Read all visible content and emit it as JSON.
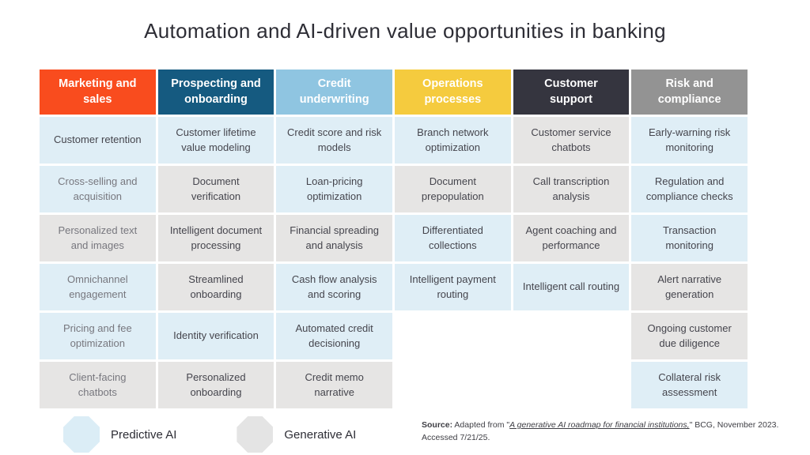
{
  "title": "Automation and AI-driven value opportunities in banking",
  "colors": {
    "predictive_cell": "#dfeef6",
    "generative_cell": "#e6e5e4"
  },
  "table": {
    "columns": [
      {
        "header": "Marketing and sales",
        "header_color": "#f94c1e",
        "cells": [
          {
            "text": "Customer retention",
            "type": "predictive"
          },
          {
            "text": "Cross-selling and acquisition",
            "type": "predictive",
            "muted": true
          },
          {
            "text": "Personalized text and images",
            "type": "generative",
            "muted": true
          },
          {
            "text": "Omnichannel engagement",
            "type": "predictive",
            "muted": true
          },
          {
            "text": "Pricing and fee optimization",
            "type": "predictive",
            "muted": true
          },
          {
            "text": "Client-facing chatbots",
            "type": "generative",
            "muted": true
          }
        ]
      },
      {
        "header": "Prospecting and onboarding",
        "header_color": "#155a80",
        "cells": [
          {
            "text": "Customer lifetime value modeling",
            "type": "predictive"
          },
          {
            "text": "Document verification",
            "type": "generative"
          },
          {
            "text": "Intelligent document processing",
            "type": "generative"
          },
          {
            "text": "Streamlined onboarding",
            "type": "generative"
          },
          {
            "text": "Identity verification",
            "type": "predictive"
          },
          {
            "text": "Personalized onboarding",
            "type": "generative"
          }
        ]
      },
      {
        "header": "Credit underwriting",
        "header_color": "#8fc5e1",
        "cells": [
          {
            "text": "Credit score and risk models",
            "type": "predictive"
          },
          {
            "text": "Loan-pricing optimization",
            "type": "predictive"
          },
          {
            "text": "Financial spreading and analysis",
            "type": "generative"
          },
          {
            "text": "Cash flow analysis and scoring",
            "type": "predictive"
          },
          {
            "text": "Automated credit decisioning",
            "type": "predictive"
          },
          {
            "text": "Credit memo narrative",
            "type": "generative"
          }
        ]
      },
      {
        "header": "Operations processes",
        "header_color": "#f5cb3e",
        "cells": [
          {
            "text": "Branch network optimization",
            "type": "predictive"
          },
          {
            "text": "Document prepopulation",
            "type": "generative"
          },
          {
            "text": "Differentiated collections",
            "type": "predictive"
          },
          {
            "text": "Intelligent payment routing",
            "type": "predictive"
          },
          {
            "type": "empty"
          },
          {
            "type": "empty"
          }
        ]
      },
      {
        "header": "Customer support",
        "header_color": "#35353f",
        "cells": [
          {
            "text": "Customer service chatbots",
            "type": "generative"
          },
          {
            "text": "Call transcription analysis",
            "type": "generative"
          },
          {
            "text": "Agent coaching and performance",
            "type": "generative"
          },
          {
            "text": "Intelligent call routing",
            "type": "predictive"
          },
          {
            "type": "empty"
          },
          {
            "type": "empty"
          }
        ]
      },
      {
        "header": "Risk and compliance",
        "header_color": "#939393",
        "cells": [
          {
            "text": "Early-warning risk monitoring",
            "type": "predictive"
          },
          {
            "text": "Regulation and compliance checks",
            "type": "predictive"
          },
          {
            "text": "Transaction monitoring",
            "type": "predictive"
          },
          {
            "text": "Alert narrative generation",
            "type": "generative"
          },
          {
            "text": "Ongoing customer due diligence",
            "type": "generative"
          },
          {
            "text": "Collateral risk assessment",
            "type": "predictive"
          }
        ]
      }
    ]
  },
  "legend": [
    {
      "label": "Predictive AI",
      "color": "#dbedf6"
    },
    {
      "label": "Generative AI",
      "color": "#e4e4e4"
    }
  ],
  "source": {
    "label": "Source:",
    "prefix": " Adapted from \"",
    "link": "A generative AI roadmap for financial institutions,",
    "suffix": "\" BCG, November 2023.",
    "line2": "Accessed 7/21/25."
  }
}
